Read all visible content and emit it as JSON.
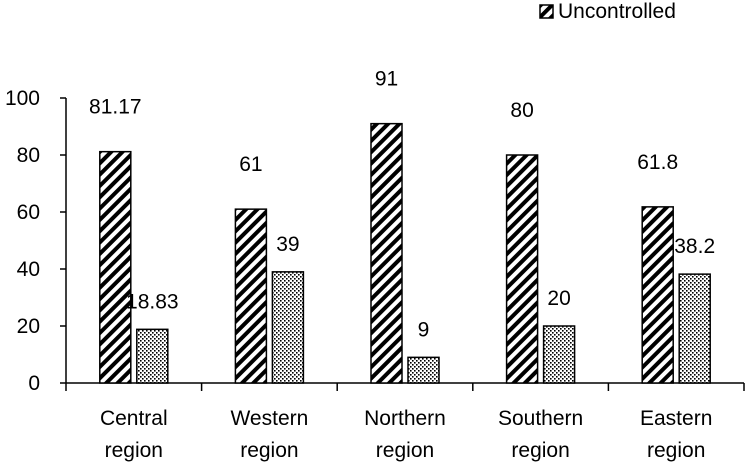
{
  "chart_data": {
    "type": "bar",
    "categories": [
      [
        "Central",
        "region"
      ],
      [
        "Western",
        "region"
      ],
      [
        "Northern",
        "region"
      ],
      [
        "Southern",
        "region"
      ],
      [
        "Eastern",
        "region"
      ]
    ],
    "series": [
      {
        "name": "Uncontrolled",
        "values": [
          81.17,
          61,
          91,
          80,
          61.8
        ],
        "labels": [
          "81.17",
          "61",
          "91",
          "80",
          "61.8"
        ],
        "pattern": "diagonal-hatch"
      },
      {
        "values": [
          18.83,
          39,
          9,
          20,
          38.2
        ],
        "labels": [
          "18.83",
          "39",
          "9",
          "20",
          "38.2"
        ],
        "pattern": "dots"
      }
    ],
    "ylim": [
      0,
      100
    ],
    "yticks": [
      0,
      20,
      40,
      60,
      80,
      100
    ],
    "grid": false,
    "legend_position": "top-right",
    "title": "",
    "xlabel": "",
    "ylabel": ""
  }
}
